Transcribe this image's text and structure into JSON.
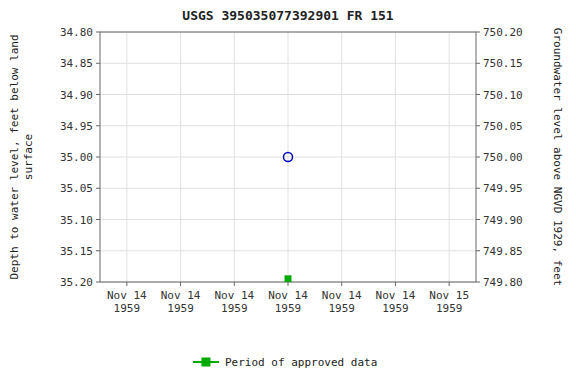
{
  "chart_data": {
    "type": "scatter",
    "title": "USGS 395035077392901 FR   151",
    "ylabel": "Depth to water level, feet below land\nsurface",
    "y2label": "Groundwater level above NGVD 1929, feet",
    "categories": [
      "Nov 14\n1959",
      "Nov 14\n1959",
      "Nov 14\n1959",
      "Nov 14\n1959",
      "Nov 14\n1959",
      "Nov 14\n1959",
      "Nov 15\n1959"
    ],
    "series": [
      {
        "color": "#0000cc",
        "marker": "open-circle",
        "values": [
          null,
          null,
          null,
          35.0,
          null,
          null,
          null
        ]
      },
      {
        "name": "Period of approved data",
        "color": "#00aa00",
        "marker": "square",
        "values": [
          null,
          null,
          null,
          35.195,
          null,
          null,
          null
        ]
      }
    ],
    "ylim": [
      35.2,
      34.8
    ],
    "yticks": [
      {
        "value": 34.8,
        "label": "34.80"
      },
      34.85,
      {
        "value": 34.9,
        "label": "34.90"
      },
      34.95,
      {
        "value": 35.0,
        "label": "35.00"
      },
      35.05,
      {
        "value": 35.1,
        "label": "35.10"
      },
      35.15,
      {
        "value": 35.2,
        "label": "35.20"
      }
    ],
    "y2lim": [
      749.8,
      750.2
    ],
    "y2ticks": [
      {
        "value": 749.8,
        "label": "749.80"
      },
      749.85,
      {
        "value": 749.9,
        "label": "749.90"
      },
      749.95,
      {
        "value": 750.0,
        "label": "750.00"
      },
      750.05,
      {
        "value": 750.1,
        "label": "750.10"
      },
      750.15,
      {
        "value": 750.2,
        "label": "750.20"
      }
    ],
    "grid": true,
    "legend": "bottom"
  }
}
